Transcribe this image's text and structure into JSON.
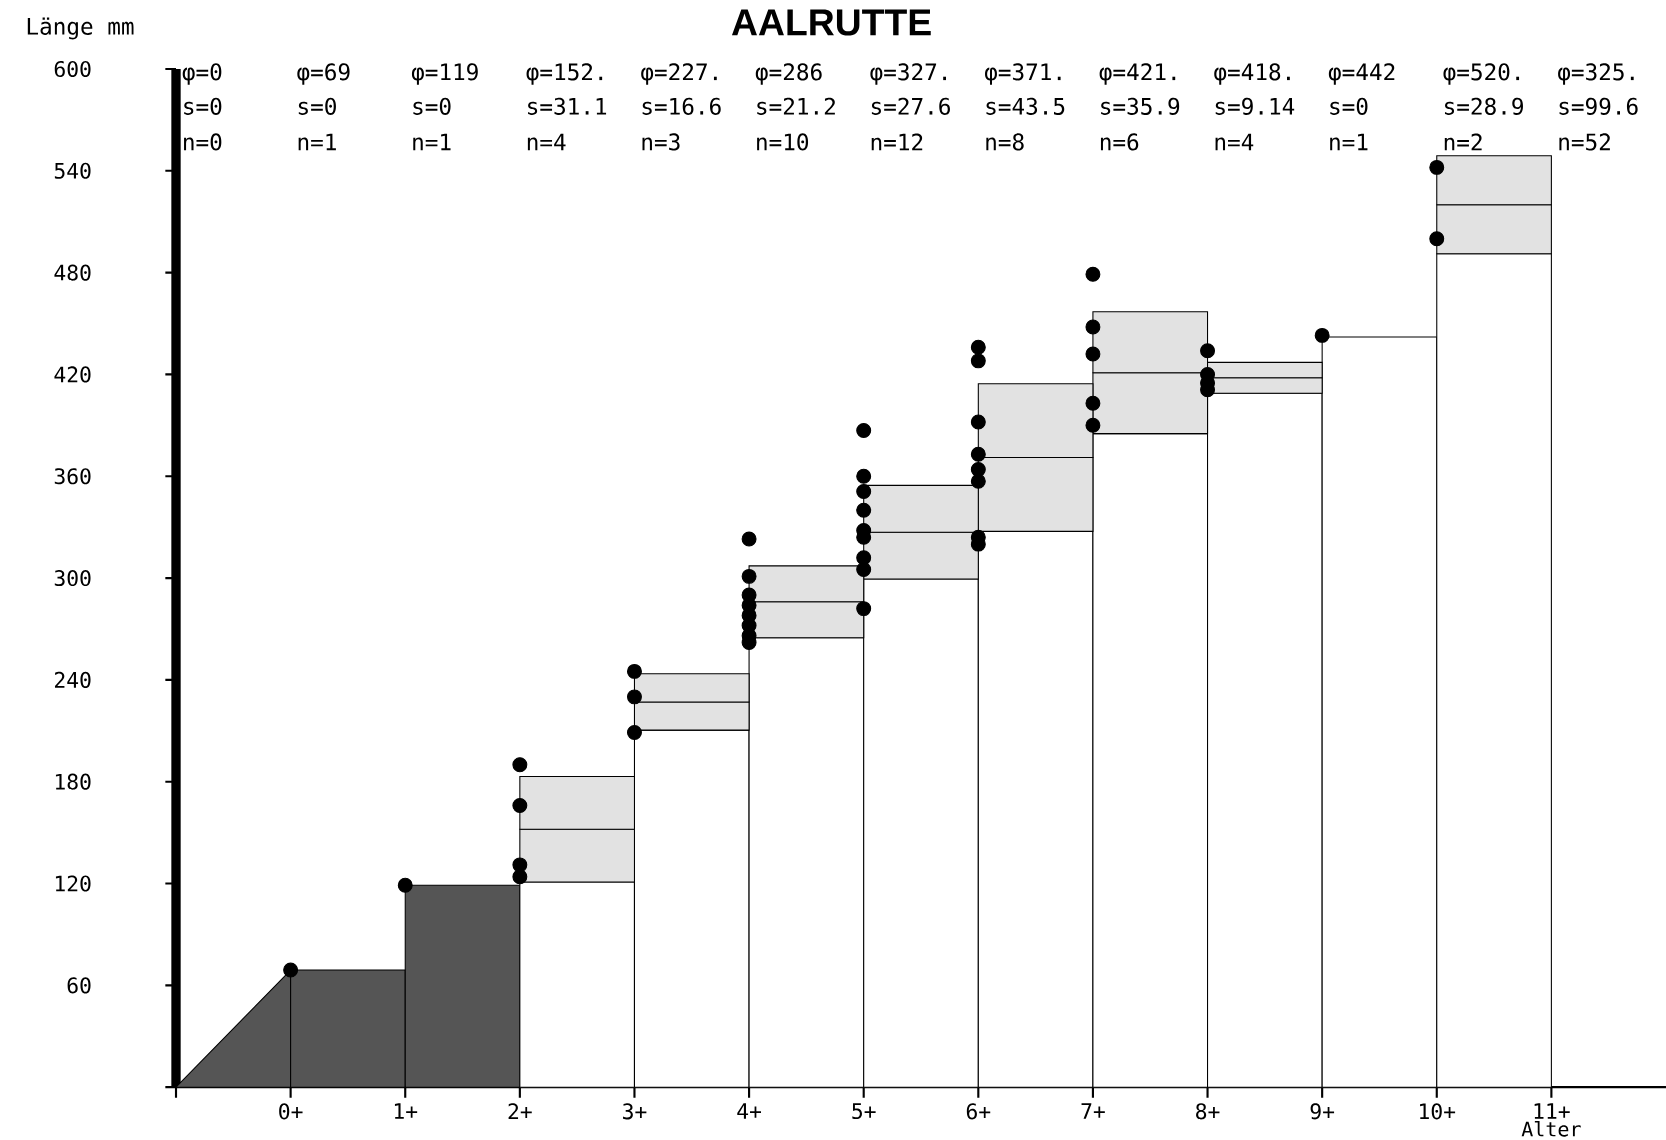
{
  "chart_data": {
    "type": "bar",
    "stacked": true,
    "title": "AALRUTTE",
    "xlabel": "Alter",
    "ylabel": "Länge mm",
    "categories": [
      null,
      "0+",
      "1+",
      "2+",
      "3+",
      "4+",
      "5+",
      "6+",
      "7+",
      "8+",
      "9+",
      "10+",
      "11+"
    ],
    "ylim": [
      0,
      600
    ],
    "yticks": [
      {
        "value": 0,
        "label": null
      },
      60,
      120,
      180,
      240,
      300,
      360,
      420,
      480,
      540,
      600
    ],
    "series": [
      {
        "type": "area",
        "color": "#555555",
        "values": [
          0,
          69,
          null,
          null,
          null,
          null,
          null,
          null,
          null,
          null,
          null,
          null,
          null
        ]
      },
      {
        "colors": [
          "#555555",
          "#555555",
          "#555555",
          "#ffffff",
          "#ffffff",
          "#ffffff",
          "#ffffff",
          "#ffffff",
          "#ffffff",
          "#ffffff",
          "#ffffff",
          "#ffffff",
          "#ffffff"
        ],
        "values": [
          null,
          69,
          119,
          120.9,
          210.4,
          264.8,
          299.4,
          327.5,
          385.1,
          408.9,
          442,
          491.1,
          null
        ]
      },
      {
        "color": "#e2e2e2",
        "values": [
          null,
          null,
          null,
          31.1,
          16.6,
          21.2,
          27.6,
          43.5,
          35.9,
          9.1,
          null,
          28.9,
          null
        ]
      },
      {
        "color": "#e2e2e2",
        "values": [
          null,
          null,
          null,
          31.1,
          16.6,
          21.2,
          27.6,
          43.5,
          35.9,
          9.1,
          null,
          28.9,
          null
        ]
      },
      {
        "type": "scatter",
        "color": "#000000",
        "x": [
          "0+",
          "1+",
          "2+",
          "2+",
          "2+",
          "2+",
          "3+",
          "3+",
          "3+",
          "4+",
          "4+",
          "4+",
          "4+",
          "4+",
          "4+",
          "4+",
          "4+",
          "5+",
          "5+",
          "5+",
          "5+",
          "5+",
          "5+",
          "5+",
          "5+",
          "5+",
          "6+",
          "6+",
          "6+",
          "6+",
          "6+",
          "6+",
          "6+",
          "6+",
          "7+",
          "7+",
          "7+",
          "7+",
          "7+",
          "8+",
          "8+",
          "8+",
          "8+",
          "9+",
          "10+",
          "10+"
        ],
        "values": [
          69,
          119,
          190,
          166,
          131,
          124,
          245,
          230,
          209,
          323,
          301,
          290,
          284,
          278,
          272,
          266,
          262,
          387,
          360,
          351,
          340,
          328,
          324,
          312,
          305,
          282,
          436,
          428,
          392,
          373,
          364,
          357,
          324,
          320,
          479,
          448,
          432,
          403,
          390,
          434,
          420,
          415,
          411,
          443,
          542,
          500
        ]
      }
    ],
    "annotations": [
      "φ=0",
      "φ=69",
      "φ=119",
      "φ=152.",
      "φ=227.",
      "φ=286",
      "φ=327.",
      "φ=371.",
      "φ=421.",
      "φ=418.",
      "φ=442",
      "φ=520.",
      "φ=325.",
      "s=0",
      "s=0",
      "s=0",
      "s=31.1",
      "s=16.6",
      "s=21.2",
      "s=27.6",
      "s=43.5",
      "s=35.9",
      "s=9.14",
      "s=0",
      "s=28.9",
      "s=99.6",
      "n=0",
      "n=1",
      "n=1",
      "n=4",
      "n=3",
      "n=10",
      "n=12",
      "n=8",
      "n=6",
      "n=4",
      "n=1",
      "n=2",
      "n=52"
    ]
  }
}
